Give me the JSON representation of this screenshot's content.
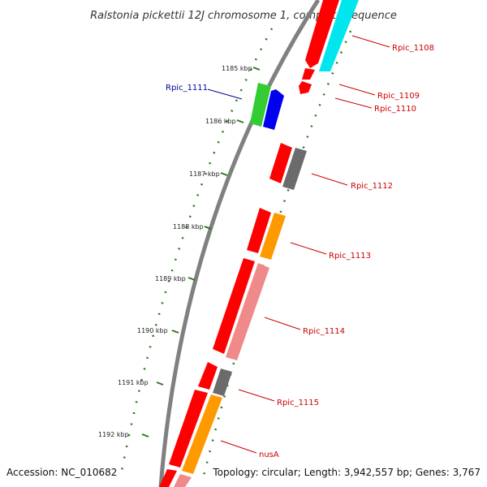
{
  "title": "Ralstonia pickettii 12J chromosome 1, complete sequence",
  "footer": {
    "accession": "Accession: NC_010682",
    "summary": "Topology: circular; Length: 3,942,557 bp; Genes: 3,767"
  },
  "colors": {
    "backbone": "#808080",
    "tick": "#2a7a1a",
    "label_red": "#cc0000",
    "label_blue": "#000099",
    "gene_red": "#ff0000",
    "gene_salmon": "#f08a8a",
    "gene_gray": "#6b6b6b",
    "gene_orange": "#ff9900",
    "gene_cyan": "#00e5ee",
    "gene_green": "#33cc33",
    "gene_blue": "#0000ee"
  },
  "ticks": [
    {
      "label": "1185 kbp"
    },
    {
      "label": "1186 kbp"
    },
    {
      "label": "1187 kbp"
    },
    {
      "label": "1188 kbp"
    },
    {
      "label": "1189 kbp"
    },
    {
      "label": "1190 kbp"
    },
    {
      "label": "1191 kbp"
    },
    {
      "label": "1192 kbp"
    }
  ],
  "genes": [
    {
      "label": "Rpic_1108",
      "color": "red"
    },
    {
      "label": "Rpic_1109",
      "color": "red"
    },
    {
      "label": "Rpic_1110",
      "color": "red"
    },
    {
      "label": "Rpic_1111",
      "color": "blue"
    },
    {
      "label": "Rpic_1112",
      "color": "red"
    },
    {
      "label": "Rpic_1113",
      "color": "red"
    },
    {
      "label": "Rpic_1114",
      "color": "red"
    },
    {
      "label": "Rpic_1115",
      "color": "red"
    },
    {
      "label": "nusA",
      "color": "red"
    }
  ]
}
